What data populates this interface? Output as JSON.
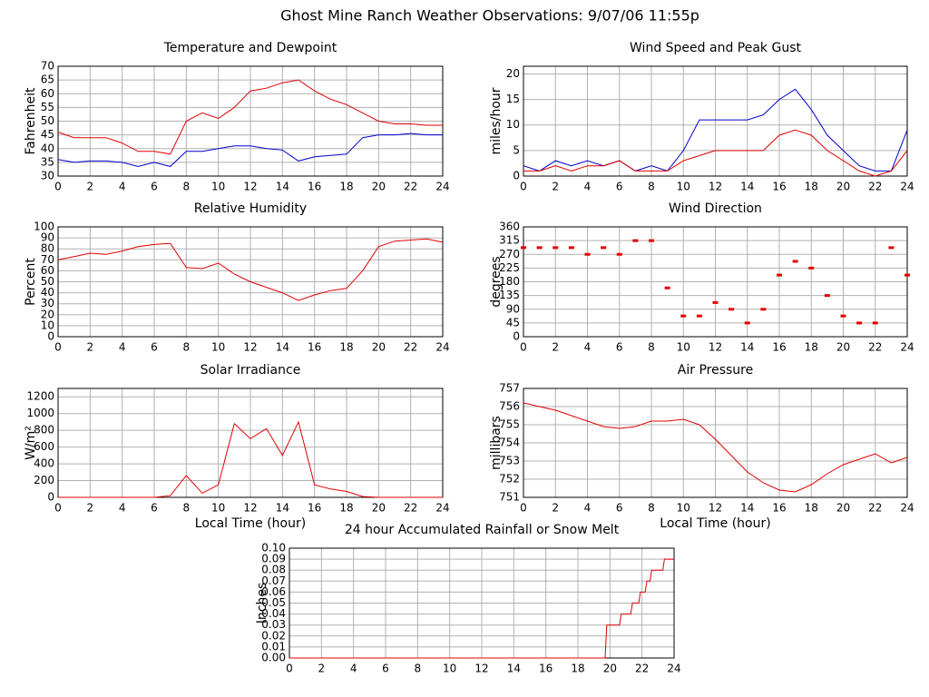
{
  "title": "Ghost Mine Ranch Weather Observations: 9/07/06 11:55p",
  "chart_data": [
    {
      "type": "line",
      "title": "Temperature and Dewpoint",
      "ylabel": "Fahrenheit",
      "x": [
        0,
        1,
        2,
        3,
        4,
        5,
        6,
        7,
        8,
        9,
        10,
        11,
        12,
        13,
        14,
        15,
        16,
        17,
        18,
        19,
        20,
        21,
        22,
        23,
        24
      ],
      "series": [
        {
          "color": "#e00000",
          "values": [
            46,
            44,
            44,
            44,
            42,
            39,
            39,
            38,
            50,
            53,
            51,
            55,
            61,
            62,
            64,
            65,
            61,
            58,
            56,
            53,
            50,
            49,
            49,
            48.5,
            48.5
          ]
        },
        {
          "color": "#0000cc",
          "values": [
            36,
            35,
            35.5,
            35.5,
            35,
            33.5,
            35,
            33.5,
            39,
            39,
            40,
            41,
            41,
            40,
            39.5,
            35.5,
            37,
            37.5,
            38,
            44,
            45,
            45,
            45.5,
            45,
            45
          ]
        }
      ],
      "xlim": [
        0,
        24
      ],
      "ylim": [
        30,
        70
      ],
      "xticks": [
        0,
        2,
        4,
        6,
        8,
        10,
        12,
        14,
        16,
        18,
        20,
        22,
        24
      ],
      "yticks": [
        30,
        35,
        40,
        45,
        50,
        55,
        60,
        65,
        70
      ],
      "grid": true
    },
    {
      "type": "line",
      "title": "Wind Speed and Peak Gust",
      "ylabel": "miles/hour",
      "x": [
        0,
        1,
        2,
        3,
        4,
        5,
        6,
        7,
        8,
        9,
        10,
        11,
        12,
        13,
        14,
        15,
        16,
        17,
        18,
        19,
        20,
        21,
        22,
        23,
        24
      ],
      "series": [
        {
          "color": "#0000cc",
          "values": [
            2,
            1,
            3,
            2,
            3,
            2,
            3,
            1,
            2,
            1,
            5,
            11,
            11,
            11,
            11,
            12,
            15,
            17,
            13,
            8,
            5,
            2,
            1,
            1,
            9
          ]
        },
        {
          "color": "#e00000",
          "values": [
            1,
            1,
            2,
            1,
            2,
            2,
            3,
            1,
            1,
            1,
            3,
            4,
            5,
            5,
            5,
            5,
            8,
            9,
            8,
            5,
            3,
            1,
            0,
            1,
            5
          ]
        }
      ],
      "xlim": [
        0,
        24
      ],
      "ylim": [
        0,
        21.5
      ],
      "xticks": [
        0,
        2,
        4,
        6,
        8,
        10,
        12,
        14,
        16,
        18,
        20,
        22,
        24
      ],
      "yticks": [
        0,
        5,
        10,
        15,
        20
      ],
      "grid": true
    },
    {
      "type": "line",
      "title": "Relative Humidity",
      "ylabel": "Percent",
      "x": [
        0,
        1,
        2,
        3,
        4,
        5,
        6,
        7,
        8,
        9,
        10,
        11,
        12,
        13,
        14,
        15,
        16,
        17,
        18,
        19,
        20,
        21,
        22,
        23,
        24
      ],
      "series": [
        {
          "color": "#e00000",
          "values": [
            70,
            73,
            76,
            75,
            78,
            82,
            84,
            85,
            63,
            62,
            67,
            57,
            50,
            45,
            40,
            33,
            38,
            42,
            44,
            60,
            82,
            87,
            88,
            89,
            86
          ]
        }
      ],
      "xlim": [
        0,
        24
      ],
      "ylim": [
        0,
        100
      ],
      "xticks": [
        0,
        2,
        4,
        6,
        8,
        10,
        12,
        14,
        16,
        18,
        20,
        22,
        24
      ],
      "yticks": [
        0,
        10,
        20,
        30,
        40,
        50,
        60,
        70,
        80,
        90,
        100
      ],
      "grid": true
    },
    {
      "type": "scatter",
      "title": "Wind Direction",
      "ylabel": "degrees",
      "x": [
        0,
        1,
        2,
        3,
        4,
        5,
        6,
        7,
        8,
        9,
        10,
        11,
        12,
        13,
        14,
        15,
        16,
        17,
        18,
        19,
        20,
        21,
        22,
        23,
        24
      ],
      "series": [
        {
          "color": "#e00000",
          "values": [
            292,
            292,
            292,
            292,
            270,
            292,
            270,
            315,
            315,
            160,
            68,
            68,
            112,
            90,
            45,
            90,
            202,
            247,
            225,
            135,
            68,
            45,
            45,
            292,
            202
          ]
        }
      ],
      "xlim": [
        0,
        24
      ],
      "ylim": [
        0,
        360
      ],
      "xticks": [
        0,
        2,
        4,
        6,
        8,
        10,
        12,
        14,
        16,
        18,
        20,
        22,
        24
      ],
      "yticks": [
        0,
        45,
        90,
        135,
        180,
        225,
        270,
        315,
        360
      ],
      "grid": true
    },
    {
      "type": "line",
      "title": "Solar Irradiance",
      "ylabel": "W/m²",
      "xlabel": "Local Time (hour)",
      "x": [
        0,
        1,
        2,
        3,
        4,
        5,
        6,
        7,
        8,
        9,
        10,
        11,
        12,
        13,
        14,
        15,
        16,
        17,
        18,
        19,
        20,
        21,
        22,
        23,
        24
      ],
      "series": [
        {
          "color": "#e00000",
          "values": [
            0,
            0,
            0,
            0,
            0,
            0,
            0,
            20,
            260,
            50,
            150,
            880,
            700,
            820,
            500,
            900,
            150,
            100,
            70,
            10,
            0,
            0,
            0,
            0,
            0
          ]
        }
      ],
      "xlim": [
        0,
        24
      ],
      "ylim": [
        0,
        1300
      ],
      "xticks": [
        0,
        2,
        4,
        6,
        8,
        10,
        12,
        14,
        16,
        18,
        20,
        22,
        24
      ],
      "yticks": [
        0,
        200,
        400,
        600,
        800,
        1000,
        1200
      ],
      "grid": true
    },
    {
      "type": "line",
      "title": "Air Pressure",
      "ylabel": "millibars",
      "xlabel": "Local Time (hour)",
      "x": [
        0,
        1,
        2,
        3,
        4,
        5,
        6,
        7,
        8,
        9,
        10,
        11,
        12,
        13,
        14,
        15,
        16,
        17,
        18,
        19,
        20,
        21,
        22,
        23,
        24
      ],
      "series": [
        {
          "color": "#e00000",
          "values": [
            756.2,
            756.0,
            755.8,
            755.5,
            755.2,
            754.9,
            754.8,
            754.9,
            755.2,
            755.2,
            755.3,
            755.0,
            754.2,
            753.3,
            752.4,
            751.8,
            751.4,
            751.3,
            751.7,
            752.3,
            752.8,
            753.1,
            753.4,
            752.9,
            753.2
          ]
        }
      ],
      "xlim": [
        0,
        24
      ],
      "ylim": [
        751,
        757
      ],
      "xticks": [
        0,
        2,
        4,
        6,
        8,
        10,
        12,
        14,
        16,
        18,
        20,
        22,
        24
      ],
      "yticks": [
        751,
        752,
        753,
        754,
        755,
        756,
        757
      ],
      "grid": true
    },
    {
      "type": "line",
      "title": "24 hour Accumulated Rainfall or Snow Melt",
      "ylabel": "Inches",
      "x": [
        0,
        19.7,
        19.8,
        20.6,
        20.7,
        21.3,
        21.4,
        21.8,
        21.9,
        22.2,
        22.3,
        22.5,
        22.6,
        23.3,
        23.4,
        24
      ],
      "series": [
        {
          "color": "#e00000",
          "values": [
            0,
            0,
            0.03,
            0.03,
            0.04,
            0.04,
            0.05,
            0.05,
            0.06,
            0.06,
            0.07,
            0.07,
            0.08,
            0.08,
            0.09,
            0.09
          ]
        }
      ],
      "xlim": [
        0,
        24
      ],
      "ylim": [
        0,
        0.1
      ],
      "xticks": [
        0,
        2,
        4,
        6,
        8,
        10,
        12,
        14,
        16,
        18,
        20,
        22,
        24
      ],
      "yticks": [
        {
          "value": 0,
          "label": "0.00"
        },
        {
          "value": 0.01,
          "label": "0.01"
        },
        {
          "value": 0.02,
          "label": "0.02"
        },
        {
          "value": 0.03,
          "label": "0.03"
        },
        {
          "value": 0.04,
          "label": "0.04"
        },
        {
          "value": 0.05,
          "label": "0.05"
        },
        {
          "value": 0.06,
          "label": "0.06"
        },
        {
          "value": 0.07,
          "label": "0.07"
        },
        {
          "value": 0.08,
          "label": "0.08"
        },
        {
          "value": 0.09,
          "label": "0.09"
        },
        {
          "value": 0.1,
          "label": "0.10"
        }
      ],
      "grid": true
    }
  ]
}
